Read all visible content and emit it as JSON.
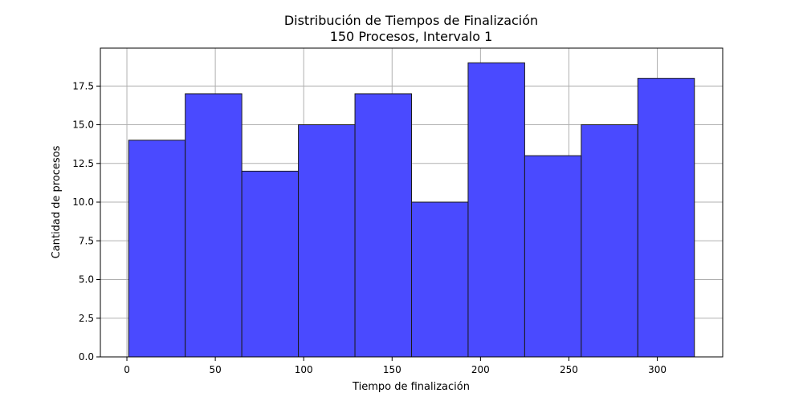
{
  "chart_data": {
    "type": "bar",
    "title": "Distribución de Tiempos de Finalización",
    "subtitle": "150 Procesos, Intervalo 1",
    "xlabel": "Tiempo de finalización",
    "ylabel": "Cantidad de procesos",
    "bin_edges": [
      1,
      33,
      65,
      97,
      129,
      161,
      193,
      225,
      257,
      289,
      321
    ],
    "values": [
      14,
      17,
      12,
      15,
      17,
      10,
      19,
      13,
      15,
      18
    ],
    "xlim": [
      -15,
      337
    ],
    "ylim": [
      0,
      19.95
    ],
    "xticks": [
      0,
      50,
      100,
      150,
      200,
      250,
      300
    ],
    "xtick_labels": [
      "0",
      "50",
      "100",
      "150",
      "200",
      "250",
      "300"
    ],
    "yticks": [
      0,
      2.5,
      5,
      7.5,
      10,
      12.5,
      15,
      17.5
    ],
    "ytick_labels": [
      "0.0",
      "2.5",
      "5.0",
      "7.5",
      "10.0",
      "12.5",
      "15.0",
      "17.5"
    ],
    "grid": true,
    "bar_color": "#4a4aff",
    "edge_color": "#1a1a1a"
  }
}
